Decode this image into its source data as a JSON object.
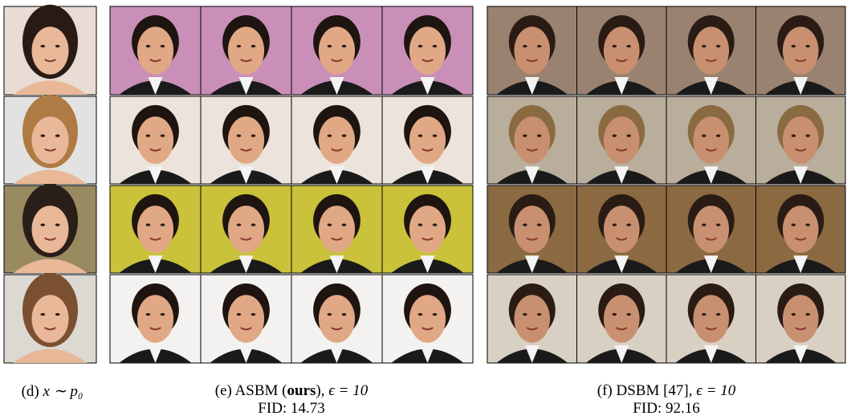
{
  "panels": [
    {
      "label": "(d)",
      "math": "x ∼ p₀"
    },
    {
      "label": "(e) ASBM (",
      "bold": "ours",
      "after": "),",
      "math": "ϵ = 10",
      "fid": "FID: 14.73"
    },
    {
      "label": "(f) DSBM [47],",
      "math": "ϵ = 10",
      "fid": "FID: 92.16"
    }
  ]
}
